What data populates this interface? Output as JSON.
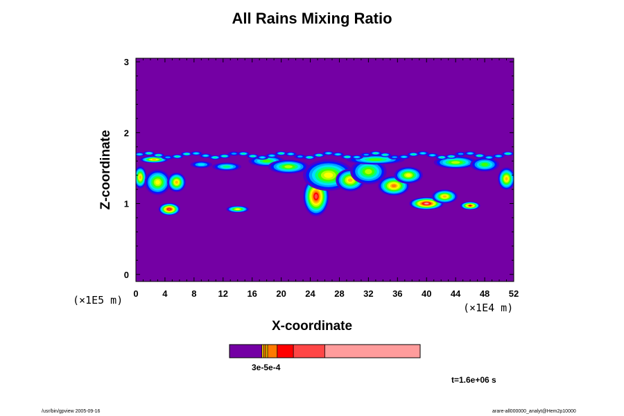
{
  "title": "All Rains Mixing Ratio",
  "colors": {
    "background_field": "#7400a4",
    "palette": [
      "#7400a4",
      "#5000c8",
      "#0018ff",
      "#00a0ff",
      "#00e0ff",
      "#00ff80",
      "#40ff00",
      "#b4ff00",
      "#ffff00",
      "#ffc000",
      "#ff8000",
      "#ff0000",
      "#ff4646",
      "#ff9c9c"
    ]
  },
  "chart_data": {
    "type": "heatmap",
    "title": "All Rains Mixing Ratio",
    "xlabel": "X-coordinate",
    "ylabel": "Z-coordinate",
    "x_unit": "(×1E4 m)",
    "y_unit": "(×1E5 m)",
    "xlim": [
      0,
      52
    ],
    "ylim": [
      -0.1,
      3.05
    ],
    "x_ticks": [
      "0",
      "4",
      "8",
      "12",
      "16",
      "20",
      "24",
      "28",
      "32",
      "36",
      "40",
      "44",
      "48",
      "52"
    ],
    "y_ticks": [
      "0",
      "1",
      "2",
      "3"
    ],
    "colorbar": {
      "label": "3e-5e-4",
      "segments": [
        {
          "color": "#7400a4",
          "width": 0.17
        },
        {
          "color": "#ffc800",
          "width": 0.01
        },
        {
          "color": "#ff8000",
          "width": 0.01
        },
        {
          "color": "#ffc800",
          "width": 0.01
        },
        {
          "color": "#ff7a00",
          "width": 0.05
        },
        {
          "color": "#ff0000",
          "width": 0.085
        },
        {
          "color": "#ff4646",
          "width": 0.165
        },
        {
          "color": "#ff9c9c",
          "width": 0.5
        }
      ]
    },
    "time_label": "t=1.6e+06 s"
  },
  "footer": {
    "left": "/usr/bin/gpview 2005-09-16",
    "right": "arare-all000000_analyt@Hem2p10000"
  }
}
